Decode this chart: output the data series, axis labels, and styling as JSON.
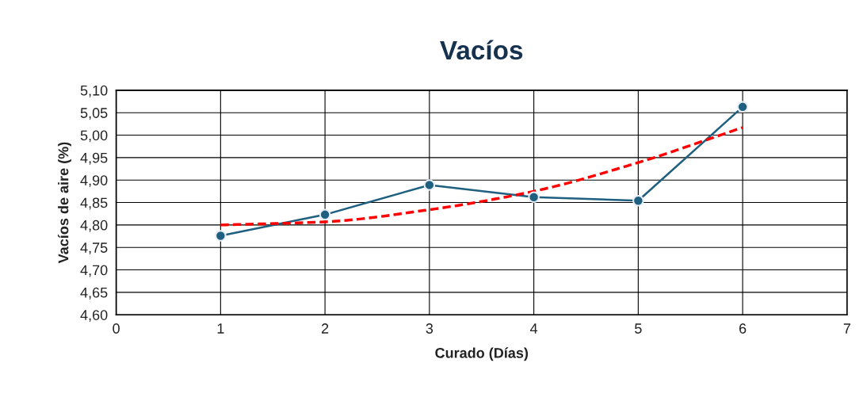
{
  "chart_data": {
    "type": "line",
    "title": "Vacíos",
    "xlabel": "Curado (Días)",
    "ylabel": "Vacíos de aire (%)",
    "grid": true,
    "xlim": [
      0,
      7
    ],
    "xticks": [
      0,
      1,
      2,
      3,
      4,
      5,
      6,
      7
    ],
    "ylim": [
      4.6,
      5.1
    ],
    "yticks": [
      {
        "value": 4.6,
        "label": "4,60"
      },
      {
        "value": 4.65,
        "label": "4,65"
      },
      {
        "value": 4.7,
        "label": "4,70"
      },
      {
        "value": 4.75,
        "label": "4,75"
      },
      {
        "value": 4.8,
        "label": "4,80"
      },
      {
        "value": 4.85,
        "label": "4,85"
      },
      {
        "value": 4.9,
        "label": "4,90"
      },
      {
        "value": 4.95,
        "label": "4,95"
      },
      {
        "value": 5.0,
        "label": "5,00"
      },
      {
        "value": 5.05,
        "label": "5,05"
      },
      {
        "value": 5.1,
        "label": "5,10"
      }
    ],
    "series": [
      {
        "color": "#1f5f80",
        "x": [
          1,
          2,
          3,
          4,
          5,
          6
        ],
        "values": [
          4.776,
          4.823,
          4.889,
          4.862,
          4.854,
          5.063
        ],
        "marker": "circle",
        "line_style": "solid"
      },
      {
        "color": "#ff0000",
        "x": [
          1,
          2,
          3,
          4,
          5,
          6
        ],
        "values": [
          4.8,
          4.807,
          4.834,
          4.875,
          4.939,
          5.017
        ],
        "marker": "none",
        "line_style": "dashed"
      }
    ]
  }
}
